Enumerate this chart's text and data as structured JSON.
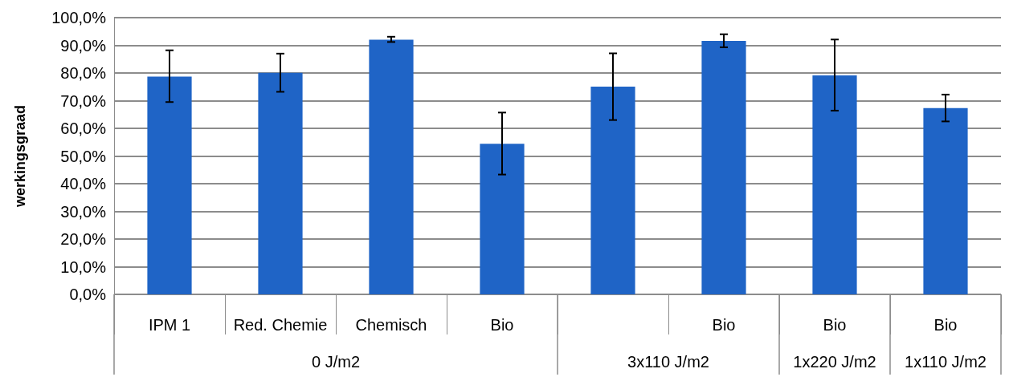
{
  "chart_data": {
    "type": "bar",
    "ylabel": "werkingsgraad",
    "categories": [
      "IPM 1",
      "Red. Chemie",
      "Chemisch",
      "Bio",
      null,
      "Bio",
      "Bio",
      "Bio"
    ],
    "values": [
      78.7,
      80.1,
      92.0,
      54.4,
      75.1,
      91.6,
      79.1,
      67.3
    ],
    "errors": [
      [
        69.5,
        88.2
      ],
      [
        73.2,
        87.0
      ],
      [
        91.2,
        93.1
      ],
      [
        43.3,
        65.7
      ],
      [
        63.0,
        87.1
      ],
      [
        89.3,
        94.0
      ],
      [
        66.4,
        92.1
      ],
      [
        62.5,
        72.2
      ]
    ],
    "color": "#1f64c6",
    "ylim": [
      0,
      100
    ],
    "yticks": [
      {
        "value": 0,
        "label": "0,0%"
      },
      {
        "value": 10,
        "label": "10,0%"
      },
      {
        "value": 20,
        "label": "20,0%"
      },
      {
        "value": 30,
        "label": "30,0%"
      },
      {
        "value": 40,
        "label": "40,0%"
      },
      {
        "value": 50,
        "label": "50,0%"
      },
      {
        "value": 60,
        "label": "60,0%"
      },
      {
        "value": 70,
        "label": "70,0%"
      },
      {
        "value": 80,
        "label": "80,0%"
      },
      {
        "value": 90,
        "label": "90,0%"
      },
      {
        "value": 100,
        "label": "100,0%"
      }
    ],
    "grid": "y",
    "annotations": [
      "0 J/m2",
      "3x110 J/m2",
      "1x220 J/m2",
      "1x110 J/m2"
    ]
  }
}
